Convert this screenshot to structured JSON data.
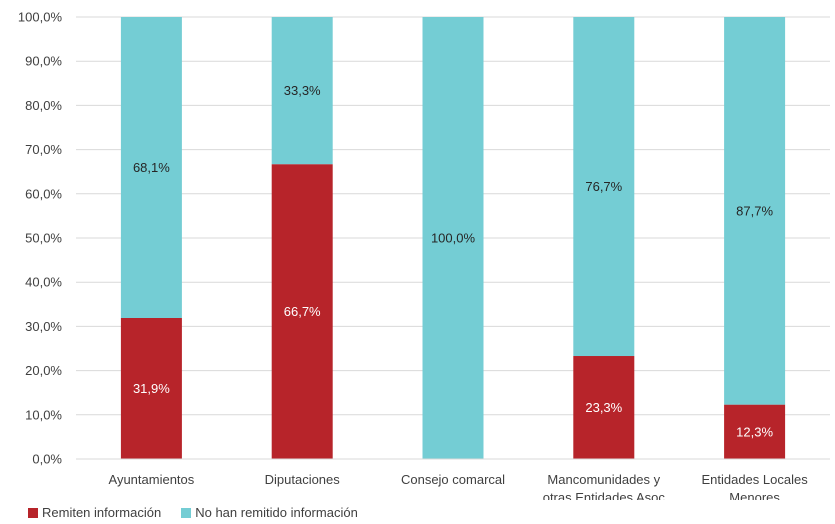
{
  "chart_data": {
    "type": "bar",
    "stacked": true,
    "categories": [
      [
        "Ayuntamientos"
      ],
      [
        "Diputaciones"
      ],
      [
        "Consejo comarcal"
      ],
      [
        "Mancomunidades y",
        "otras Entidades Asoc"
      ],
      [
        "Entidades Locales",
        "Menores"
      ]
    ],
    "series": [
      {
        "name": "Remiten información",
        "color": "#B7242A",
        "values": [
          31.9,
          66.7,
          0,
          23.3,
          12.3
        ],
        "labels": [
          "31,9%",
          "66,7%",
          "",
          "23,3%",
          "12,3%"
        ]
      },
      {
        "name": "No han remitido información",
        "color": "#74CDD4",
        "values": [
          68.1,
          33.3,
          100.0,
          76.7,
          87.7
        ],
        "labels": [
          "68,1%",
          "33,3%",
          "100,0%",
          "76,7%",
          "87,7%"
        ]
      }
    ],
    "ylim": [
      0,
      100
    ],
    "yticks": [
      "0,0%",
      "10,0%",
      "20,0%",
      "30,0%",
      "40,0%",
      "50,0%",
      "60,0%",
      "70,0%",
      "80,0%",
      "90,0%",
      "100,0%"
    ],
    "grid": true,
    "legend": "bottom-left"
  }
}
